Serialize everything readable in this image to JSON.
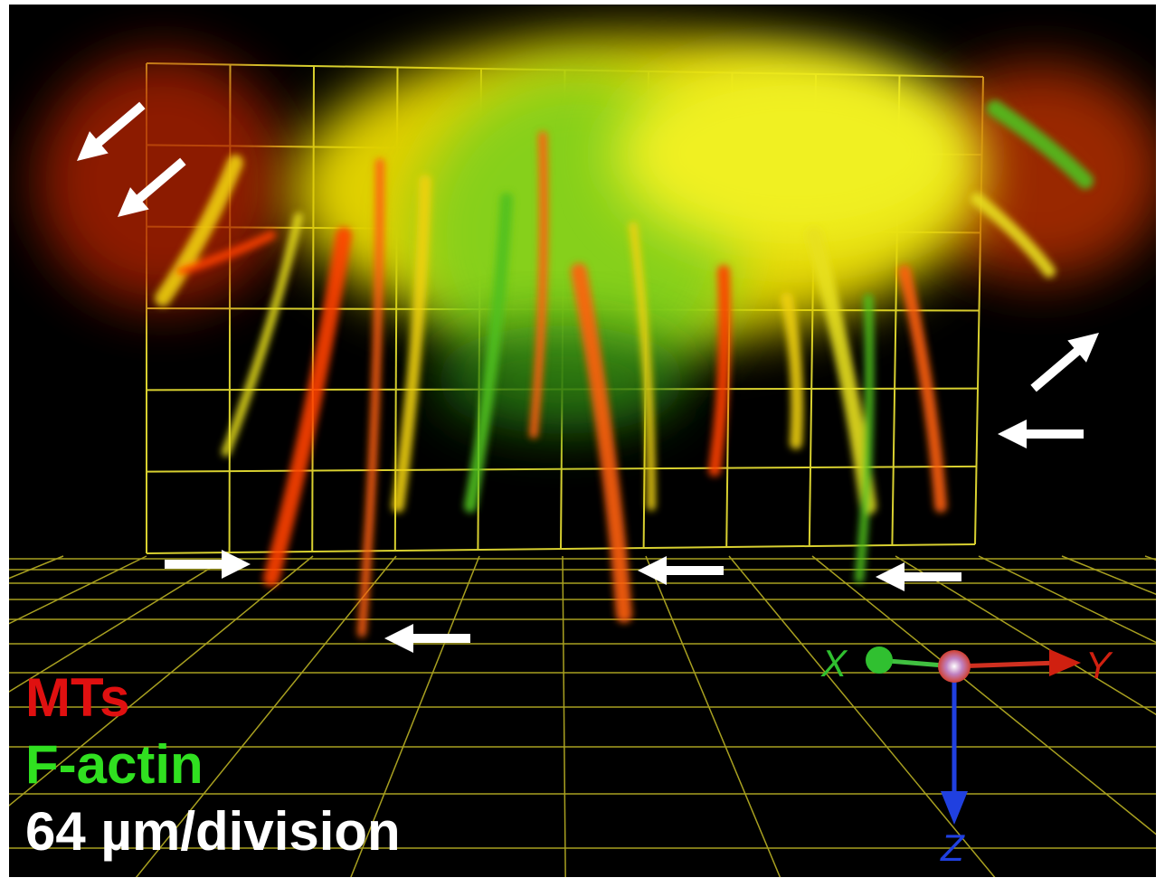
{
  "labels": {
    "mts": "MTs",
    "f_actin": "F-actin",
    "scale": "64 µm/division"
  },
  "axes": {
    "x": "X",
    "y": "Y",
    "z": "Z"
  }
}
